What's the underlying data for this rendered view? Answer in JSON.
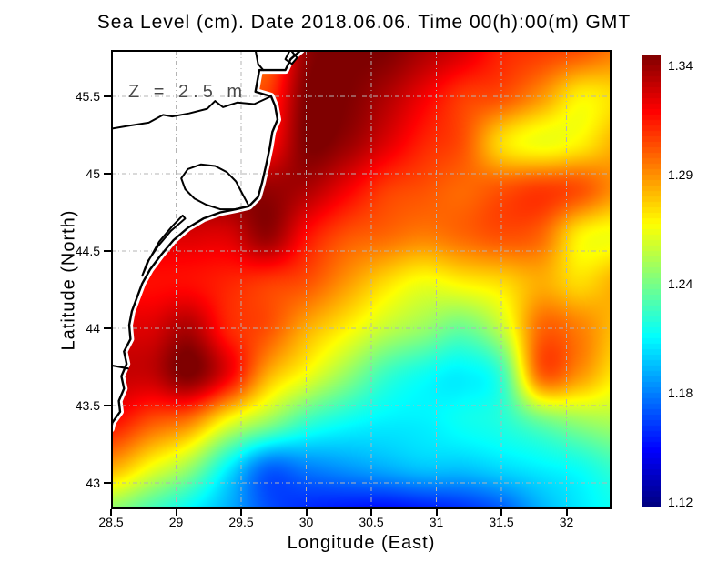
{
  "title": "Sea Level (cm). Date 2018.06.06. Time 00(h):00(m) GMT",
  "annotation": "Z = 2.5 m",
  "axes": {
    "xlabel": "Longitude (East)",
    "ylabel": "Latitude (North)",
    "xticks": [
      28.5,
      29,
      29.5,
      30,
      30.5,
      31,
      31.5,
      32
    ],
    "xtick_labels": [
      "28.5",
      "29",
      "29.5",
      "30",
      "30.5",
      "31",
      "31.5",
      "32"
    ],
    "yticks": [
      43,
      43.5,
      44,
      44.5,
      45,
      45.5
    ],
    "ytick_labels": [
      "43",
      "43.5",
      "44",
      "44.5",
      "45",
      "45.5"
    ],
    "xlim": [
      28.5,
      32.35
    ],
    "ylim": [
      42.83,
      45.79
    ],
    "grid": "dashed"
  },
  "colorbar": {
    "min": 1.12,
    "max": 1.34,
    "tick_labels": [
      "1.34",
      "1.29",
      "1.24",
      "1.18",
      "1.12"
    ],
    "colormap": "jet"
  },
  "chart_data": {
    "type": "heatmap",
    "title": "Sea Level (cm). Date 2018.06.06. Time 00(h):00(m) GMT",
    "xlabel": "Longitude (East)",
    "ylabel": "Latitude (North)",
    "annotation": "Z = 2.5 m",
    "colormap": "jet",
    "value_range": [
      1.12,
      1.34
    ],
    "xlim": [
      28.5,
      32.35
    ],
    "ylim": [
      42.83,
      45.79
    ],
    "legend_position": "right-colorbar",
    "grid_on": true,
    "x_lon": [
      28.5,
      28.8,
      29.1,
      29.4,
      29.7,
      30.0,
      30.3,
      30.6,
      30.9,
      31.2,
      31.5,
      31.8,
      32.1,
      32.4
    ],
    "y_lat": [
      45.8,
      45.5,
      45.2,
      44.9,
      44.6,
      44.3,
      44.0,
      43.7,
      43.4,
      43.1,
      42.8
    ],
    "null_means": "land",
    "values": [
      [
        null,
        null,
        null,
        null,
        1.29,
        1.335,
        1.34,
        1.34,
        1.33,
        1.32,
        1.305,
        1.3,
        1.295,
        1.285
      ],
      [
        null,
        null,
        null,
        null,
        1.3,
        1.34,
        1.34,
        1.33,
        1.315,
        1.3,
        1.295,
        1.28,
        1.26,
        1.265
      ],
      [
        null,
        null,
        null,
        null,
        1.31,
        1.34,
        1.335,
        1.32,
        1.305,
        1.295,
        1.265,
        1.255,
        1.26,
        1.275
      ],
      [
        null,
        null,
        null,
        null,
        1.335,
        1.33,
        1.315,
        1.3,
        1.295,
        1.29,
        1.295,
        1.3,
        1.295,
        1.28
      ],
      [
        null,
        null,
        null,
        1.32,
        1.335,
        1.31,
        1.295,
        1.29,
        1.285,
        1.29,
        1.295,
        1.29,
        1.26,
        1.255
      ],
      [
        null,
        null,
        1.31,
        1.305,
        1.3,
        1.295,
        1.28,
        1.265,
        1.255,
        1.26,
        1.265,
        1.275,
        1.265,
        1.275
      ],
      [
        null,
        1.32,
        1.33,
        1.305,
        1.295,
        1.275,
        1.26,
        1.245,
        1.235,
        1.225,
        1.245,
        1.29,
        1.285,
        1.27
      ],
      [
        null,
        1.325,
        1.34,
        1.315,
        1.275,
        1.255,
        1.235,
        1.215,
        1.205,
        1.2,
        1.215,
        1.29,
        1.28,
        1.26
      ],
      [
        1.31,
        1.295,
        1.285,
        1.255,
        1.235,
        1.215,
        1.205,
        1.2,
        1.2,
        1.205,
        1.21,
        1.225,
        1.235,
        1.24
      ],
      [
        1.275,
        1.255,
        1.235,
        1.2,
        1.17,
        1.175,
        1.18,
        1.185,
        1.19,
        1.19,
        1.195,
        1.2,
        1.205,
        1.215
      ],
      [
        1.23,
        1.215,
        1.2,
        1.185,
        1.165,
        1.155,
        1.15,
        1.147,
        1.15,
        1.155,
        1.165,
        1.185,
        1.198,
        1.205
      ]
    ]
  },
  "coastline": {
    "main": [
      [
        29.96,
        45.8
      ],
      [
        29.88,
        45.74
      ],
      [
        29.84,
        45.67
      ],
      [
        29.64,
        45.67
      ],
      [
        29.61,
        45.53
      ],
      [
        29.73,
        45.5
      ],
      [
        29.76,
        45.44
      ],
      [
        29.78,
        45.35
      ],
      [
        29.74,
        45.27
      ],
      [
        29.72,
        45.17
      ],
      [
        29.69,
        45.05
      ],
      [
        29.66,
        44.94
      ],
      [
        29.63,
        44.85
      ],
      [
        29.56,
        44.79
      ],
      [
        29.46,
        44.77
      ],
      [
        29.34,
        44.75
      ],
      [
        29.21,
        44.71
      ],
      [
        29.09,
        44.65
      ],
      [
        28.98,
        44.57
      ],
      [
        28.88,
        44.47
      ],
      [
        28.8,
        44.38
      ],
      [
        28.74,
        44.29
      ],
      [
        28.7,
        44.2
      ],
      [
        28.66,
        44.11
      ],
      [
        28.64,
        44.02
      ],
      [
        28.65,
        43.93
      ],
      [
        28.6,
        43.85
      ],
      [
        28.62,
        43.77
      ],
      [
        28.58,
        43.69
      ],
      [
        28.6,
        43.61
      ],
      [
        28.56,
        43.53
      ],
      [
        28.57,
        43.46
      ],
      [
        28.51,
        43.39
      ],
      [
        28.5,
        43.35
      ]
    ],
    "inner_shore": [
      [
        29.73,
        45.5
      ],
      [
        29.6,
        45.45
      ],
      [
        29.47,
        45.46
      ],
      [
        29.36,
        45.43
      ],
      [
        29.3,
        45.47
      ],
      [
        29.24,
        45.42
      ],
      [
        29.1,
        45.39
      ],
      [
        28.97,
        45.37
      ],
      [
        28.9,
        45.38
      ],
      [
        28.79,
        45.33
      ],
      [
        28.64,
        45.31
      ],
      [
        28.5,
        45.29
      ]
    ],
    "lagoon_big": [
      [
        29.56,
        44.79
      ],
      [
        29.51,
        44.87
      ],
      [
        29.46,
        44.95
      ],
      [
        29.39,
        45.01
      ],
      [
        29.3,
        45.05
      ],
      [
        29.19,
        45.06
      ],
      [
        29.09,
        45.03
      ],
      [
        29.04,
        44.97
      ],
      [
        29.07,
        44.9
      ],
      [
        29.14,
        44.84
      ],
      [
        29.23,
        44.8
      ],
      [
        29.34,
        44.77
      ],
      [
        29.45,
        44.77
      ],
      [
        29.56,
        44.79
      ]
    ],
    "lagoon_small": [
      [
        29.07,
        44.71
      ],
      [
        28.96,
        44.63
      ],
      [
        28.86,
        44.53
      ],
      [
        28.78,
        44.43
      ],
      [
        28.74,
        44.34
      ],
      [
        28.79,
        44.44
      ],
      [
        28.87,
        44.56
      ],
      [
        28.97,
        44.66
      ],
      [
        29.05,
        44.73
      ],
      [
        29.07,
        44.71
      ]
    ],
    "island_lines": [
      [
        [
          29.61,
          45.8
        ],
        [
          29.63,
          45.71
        ],
        [
          29.67,
          45.67
        ]
      ],
      [
        [
          29.87,
          45.79
        ],
        [
          29.84,
          45.74
        ],
        [
          29.89,
          45.71
        ],
        [
          29.93,
          45.75
        ],
        [
          29.89,
          45.79
        ]
      ]
    ],
    "spit": [
      [
        28.5,
        43.76
      ],
      [
        28.63,
        43.74
      ]
    ]
  }
}
